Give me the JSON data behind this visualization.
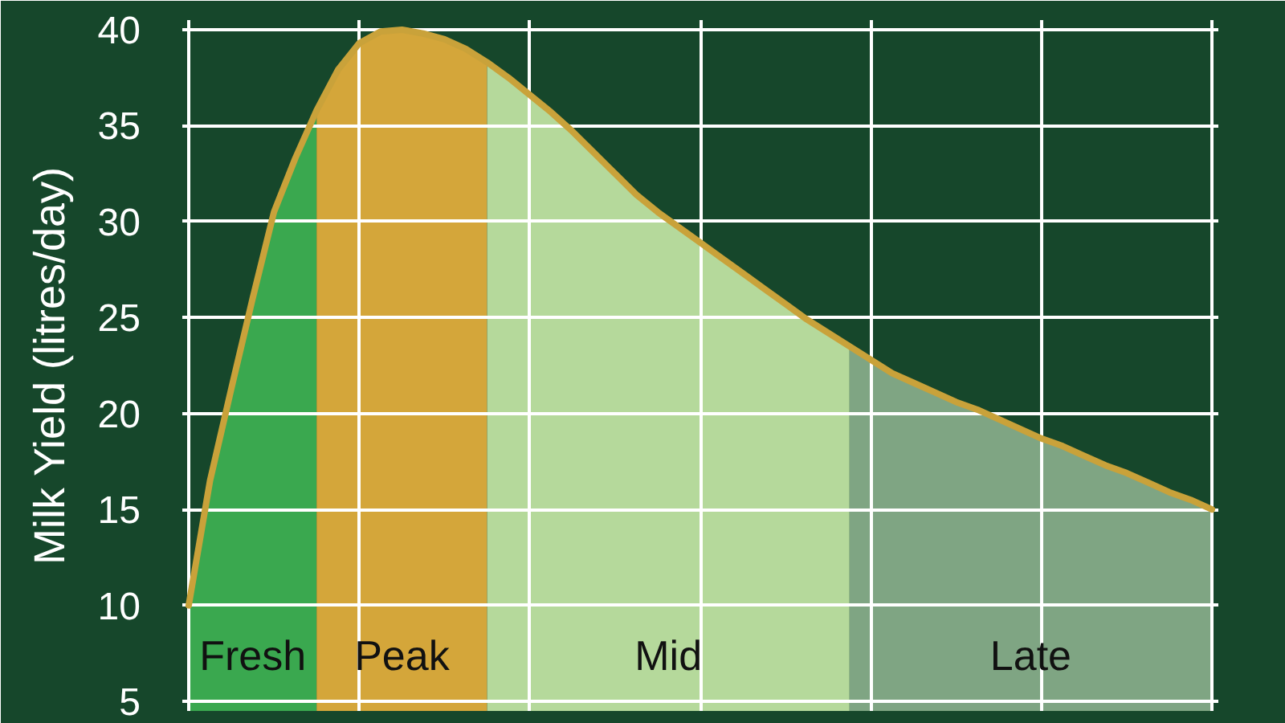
{
  "chart_data": {
    "type": "area",
    "ylabel": "Milk Yield (litres/day)",
    "categories": [
      null,
      null,
      null,
      null,
      null,
      null,
      null,
      null,
      null,
      null,
      null,
      null,
      null,
      null,
      null,
      null,
      null,
      null,
      null,
      null,
      null,
      null,
      null,
      null,
      null,
      null,
      null,
      null,
      null,
      null,
      null,
      null,
      null,
      null,
      null,
      null,
      null,
      null,
      null,
      null,
      null,
      null,
      null,
      null,
      null,
      null,
      null,
      null,
      null
    ],
    "ylim": [
      4.5,
      40.5
    ],
    "yticks": [
      5,
      10,
      15,
      20,
      25,
      30,
      35,
      40
    ],
    "grid": true,
    "series": [
      {
        "name": "Fresh",
        "color": "#3aa84f",
        "values": [
          10,
          16.5,
          21.3,
          26,
          30.5,
          33.3,
          35.8,
          null,
          null,
          null,
          null,
          null,
          null,
          null,
          null,
          null,
          null,
          null,
          null,
          null,
          null,
          null,
          null,
          null,
          null,
          null,
          null,
          null,
          null,
          null,
          null,
          null,
          null,
          null,
          null,
          null,
          null,
          null,
          null,
          null,
          null,
          null,
          null,
          null,
          null,
          null,
          null,
          null,
          null
        ]
      },
      {
        "name": "Peak",
        "color": "#d4a63a",
        "values": [
          null,
          null,
          null,
          null,
          null,
          null,
          35.8,
          37.9,
          39.3,
          39.9,
          40,
          39.8,
          39.5,
          39,
          38.3,
          null,
          null,
          null,
          null,
          null,
          null,
          null,
          null,
          null,
          null,
          null,
          null,
          null,
          null,
          null,
          null,
          null,
          null,
          null,
          null,
          null,
          null,
          null,
          null,
          null,
          null,
          null,
          null,
          null,
          null,
          null,
          null,
          null,
          null
        ]
      },
      {
        "name": "Mid",
        "color": "#b5d99b",
        "values": [
          null,
          null,
          null,
          null,
          null,
          null,
          null,
          null,
          null,
          null,
          null,
          null,
          null,
          null,
          38.3,
          37.5,
          36.6,
          35.7,
          34.7,
          33.6,
          32.5,
          31.4,
          30.5,
          29.7,
          28.9,
          28.1,
          27.3,
          26.5,
          25.7,
          24.9,
          24.2,
          23.5,
          null,
          null,
          null,
          null,
          null,
          null,
          null,
          null,
          null,
          null,
          null,
          null,
          null,
          null,
          null,
          null,
          null
        ]
      },
      {
        "name": "Late",
        "color": "#7fa583",
        "values": [
          null,
          null,
          null,
          null,
          null,
          null,
          null,
          null,
          null,
          null,
          null,
          null,
          null,
          null,
          null,
          null,
          null,
          null,
          null,
          null,
          null,
          null,
          null,
          null,
          null,
          null,
          null,
          null,
          null,
          null,
          null,
          23.5,
          22.8,
          22.1,
          21.6,
          21.1,
          20.6,
          20.2,
          19.7,
          19.2,
          18.7,
          18.3,
          17.8,
          17.3,
          16.9,
          16.4,
          15.9,
          15.5,
          15
        ]
      },
      {
        "type": "line",
        "color": "#c9a23a",
        "values": [
          10,
          16.5,
          21.3,
          26,
          30.5,
          33.3,
          35.8,
          37.9,
          39.3,
          39.9,
          40,
          39.8,
          39.5,
          39,
          38.3,
          37.5,
          36.6,
          35.7,
          34.7,
          33.6,
          32.5,
          31.4,
          30.5,
          29.7,
          28.9,
          28.1,
          27.3,
          26.5,
          25.7,
          24.9,
          24.2,
          23.5,
          22.8,
          22.1,
          21.6,
          21.1,
          20.6,
          20.2,
          19.7,
          19.2,
          18.7,
          18.3,
          17.8,
          17.3,
          16.9,
          16.4,
          15.9,
          15.5,
          15
        ]
      }
    ]
  }
}
